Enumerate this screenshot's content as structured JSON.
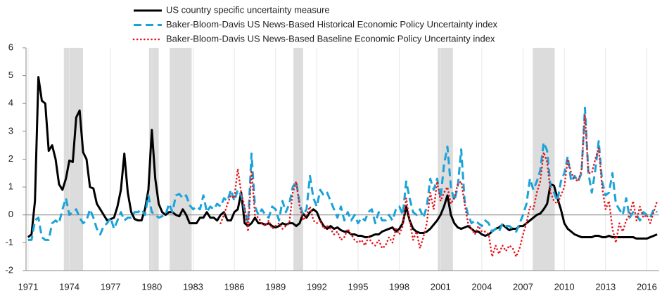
{
  "chart_data": {
    "type": "line",
    "x": [
      1971,
      1971.25,
      1971.5,
      1971.75,
      1972,
      1972.25,
      1972.5,
      1972.75,
      1973,
      1973.25,
      1973.5,
      1973.75,
      1974,
      1974.25,
      1974.5,
      1974.75,
      1975,
      1975.25,
      1975.5,
      1975.75,
      1976,
      1976.25,
      1976.5,
      1976.75,
      1977,
      1977.25,
      1977.5,
      1977.75,
      1978,
      1978.25,
      1978.5,
      1978.75,
      1979,
      1979.25,
      1979.5,
      1979.75,
      1980,
      1980.25,
      1980.5,
      1980.75,
      1981,
      1981.25,
      1981.5,
      1981.75,
      1982,
      1982.25,
      1982.5,
      1982.75,
      1983,
      1983.25,
      1983.5,
      1983.75,
      1984,
      1984.25,
      1984.5,
      1984.75,
      1985,
      1985.25,
      1985.5,
      1985.75,
      1986,
      1986.25,
      1986.5,
      1986.75,
      1987,
      1987.25,
      1987.5,
      1987.75,
      1988,
      1988.25,
      1988.5,
      1988.75,
      1989,
      1989.25,
      1989.5,
      1989.75,
      1990,
      1990.25,
      1990.5,
      1990.75,
      1991,
      1991.25,
      1991.5,
      1991.75,
      1992,
      1992.25,
      1992.5,
      1992.75,
      1993,
      1993.25,
      1993.5,
      1993.75,
      1994,
      1994.25,
      1994.5,
      1994.75,
      1995,
      1995.25,
      1995.5,
      1995.75,
      1996,
      1996.25,
      1996.5,
      1996.75,
      1997,
      1997.25,
      1997.5,
      1997.75,
      1998,
      1998.25,
      1998.5,
      1998.75,
      1999,
      1999.25,
      1999.5,
      1999.75,
      2000,
      2000.25,
      2000.5,
      2000.75,
      2001,
      2001.25,
      2001.5,
      2001.75,
      2002,
      2002.25,
      2002.5,
      2002.75,
      2003,
      2003.25,
      2003.5,
      2003.75,
      2004,
      2004.25,
      2004.5,
      2004.75,
      2005,
      2005.25,
      2005.5,
      2005.75,
      2006,
      2006.25,
      2006.5,
      2006.75,
      2007,
      2007.25,
      2007.5,
      2007.75,
      2008,
      2008.25,
      2008.5,
      2008.75,
      2009,
      2009.25,
      2009.5,
      2009.75,
      2010,
      2010.25,
      2010.5,
      2010.75,
      2011,
      2011.25,
      2011.5,
      2011.75,
      2012,
      2012.25,
      2012.5,
      2012.75,
      2013,
      2013.25,
      2013.5,
      2013.75,
      2014,
      2014.25,
      2014.5,
      2014.75,
      2015,
      2015.25,
      2015.5,
      2015.75,
      2016,
      2016.25,
      2016.5,
      2016.75
    ],
    "series": [
      {
        "name": "US country specific uncertainty measure",
        "color": "#000000",
        "line_style": "solid",
        "values": [
          -0.8,
          -0.7,
          0.5,
          4.95,
          4.1,
          4.0,
          2.3,
          2.5,
          2.0,
          1.1,
          0.9,
          1.3,
          1.95,
          1.9,
          3.5,
          3.75,
          2.25,
          2.0,
          1.0,
          0.95,
          0.4,
          0.2,
          0.0,
          -0.2,
          -0.15,
          -0.1,
          0.3,
          0.9,
          2.2,
          0.8,
          0.1,
          -0.15,
          -0.2,
          -0.2,
          0.2,
          0.9,
          3.05,
          1.3,
          0.4,
          0.1,
          0.0,
          0.1,
          0.1,
          0.0,
          -0.05,
          0.2,
          0.0,
          -0.3,
          -0.3,
          -0.3,
          -0.1,
          -0.1,
          0.1,
          -0.1,
          -0.1,
          -0.2,
          0.0,
          0.1,
          -0.2,
          -0.2,
          0.1,
          0.2,
          0.8,
          -0.3,
          -0.4,
          -0.3,
          -0.1,
          -0.3,
          -0.3,
          -0.35,
          -0.3,
          -0.4,
          -0.45,
          -0.4,
          -0.3,
          -0.35,
          -0.3,
          -0.3,
          -0.4,
          -0.3,
          0.05,
          -0.1,
          0.1,
          0.2,
          0.1,
          -0.2,
          -0.4,
          -0.5,
          -0.4,
          -0.5,
          -0.45,
          -0.55,
          -0.6,
          -0.6,
          -0.7,
          -0.7,
          -0.75,
          -0.75,
          -0.8,
          -0.8,
          -0.75,
          -0.7,
          -0.7,
          -0.6,
          -0.55,
          -0.5,
          -0.45,
          -0.6,
          -0.5,
          -0.3,
          0.3,
          -0.2,
          -0.5,
          -0.6,
          -0.65,
          -0.65,
          -0.6,
          -0.5,
          -0.35,
          -0.2,
          0.0,
          0.3,
          0.7,
          0.0,
          -0.3,
          -0.45,
          -0.5,
          -0.45,
          -0.4,
          -0.5,
          -0.6,
          -0.6,
          -0.7,
          -0.75,
          -0.7,
          -0.6,
          -0.5,
          -0.45,
          -0.35,
          -0.45,
          -0.55,
          -0.5,
          -0.5,
          -0.4,
          -0.4,
          -0.3,
          -0.2,
          -0.1,
          0.0,
          0.05,
          0.2,
          0.4,
          1.1,
          1.05,
          0.6,
          0.2,
          -0.3,
          -0.5,
          -0.6,
          -0.7,
          -0.75,
          -0.8,
          -0.8,
          -0.8,
          -0.8,
          -0.75,
          -0.75,
          -0.8,
          -0.8,
          -0.75,
          -0.8,
          -0.8,
          -0.8,
          -0.8,
          -0.8,
          -0.8,
          -0.8,
          -0.85,
          -0.85,
          -0.85,
          -0.85,
          -0.8,
          -0.75,
          -0.7
        ]
      },
      {
        "name": "Baker-Bloom-Davis US News-Based Historical Economic Policy Uncertainty index",
        "color": "#1aa3d9",
        "line_style": "dashed",
        "values": [
          -0.9,
          -0.9,
          -0.2,
          -0.1,
          -0.8,
          -0.9,
          -0.9,
          -0.3,
          -0.2,
          -0.3,
          0.2,
          0.6,
          0.0,
          0.1,
          0.2,
          -0.1,
          -0.3,
          -0.2,
          0.2,
          -0.1,
          -0.5,
          -0.7,
          -0.4,
          -0.3,
          -0.1,
          -0.5,
          -0.2,
          0.1,
          -0.2,
          -0.1,
          -0.1,
          0.1,
          0.1,
          0.2,
          0.0,
          0.7,
          0.1,
          0.0,
          -0.1,
          -0.05,
          0.0,
          0.4,
          0.1,
          0.7,
          0.75,
          0.6,
          0.7,
          0.35,
          0.2,
          0.3,
          0.2,
          0.7,
          0.1,
          0.3,
          0.2,
          0.4,
          0.3,
          0.6,
          0.5,
          0.9,
          0.5,
          0.9,
          0.7,
          0.2,
          -0.3,
          2.2,
          0.3,
          0.0,
          0.2,
          0.0,
          -0.1,
          0.3,
          0.2,
          -0.2,
          0.5,
          0.1,
          0.4,
          1.0,
          1.2,
          0.4,
          0.0,
          0.2,
          1.4,
          0.6,
          0.3,
          0.9,
          0.7,
          0.8,
          0.5,
          0.2,
          -0.1,
          0.3,
          -0.2,
          0.1,
          -0.2,
          0.0,
          -0.3,
          -0.1,
          -0.2,
          0.1,
          0.2,
          -0.3,
          0.1,
          -0.2,
          -0.2,
          0.0,
          -0.2,
          0.2,
          0.3,
          0.0,
          1.2,
          0.6,
          0.1,
          0.0,
          0.2,
          -0.1,
          0.3,
          1.3,
          0.9,
          1.3,
          0.6,
          1.8,
          2.45,
          1.0,
          0.5,
          1.0,
          2.35,
          0.5,
          0.0,
          -0.3,
          -0.2,
          -0.3,
          -0.4,
          -0.2,
          -0.3,
          -0.6,
          -0.5,
          -0.6,
          -0.3,
          -0.4,
          -0.4,
          -0.5,
          -0.6,
          -0.3,
          0.0,
          0.4,
          1.3,
          0.9,
          1.2,
          1.6,
          2.6,
          2.3,
          1.0,
          0.8,
          0.5,
          1.2,
          1.5,
          2.1,
          1.2,
          1.4,
          1.2,
          1.5,
          3.85,
          1.5,
          0.8,
          1.6,
          2.65,
          1.2,
          0.7,
          0.8,
          1.5,
          0.4,
          0.2,
          0.0,
          0.6,
          -0.1,
          0.1,
          0.0,
          -0.2,
          0.1,
          0.0,
          -0.1,
          0.2,
          0.1
        ]
      },
      {
        "name": "Baker-Bloom-Davis US News-Based Baseline Economic Policy Uncertainty index",
        "color": "#e8141c",
        "line_style": "dotted",
        "values": [
          null,
          null,
          null,
          null,
          null,
          null,
          null,
          null,
          null,
          null,
          null,
          null,
          null,
          null,
          null,
          null,
          null,
          null,
          null,
          null,
          null,
          null,
          null,
          null,
          null,
          null,
          null,
          null,
          null,
          null,
          null,
          null,
          null,
          null,
          null,
          null,
          null,
          null,
          null,
          null,
          null,
          null,
          null,
          null,
          null,
          null,
          null,
          null,
          null,
          null,
          null,
          null,
          null,
          null,
          null,
          null,
          -0.3,
          0.0,
          0.4,
          0.7,
          0.6,
          1.65,
          0.8,
          0.3,
          -0.6,
          1.6,
          0.0,
          -0.1,
          -0.3,
          -0.4,
          -0.2,
          -0.5,
          -0.4,
          -0.3,
          -0.5,
          -0.4,
          -0.3,
          0.8,
          1.2,
          0.3,
          -0.2,
          0.0,
          0.3,
          -0.2,
          -0.3,
          -0.2,
          -0.5,
          -0.4,
          -0.5,
          -0.7,
          -0.6,
          -0.9,
          -0.8,
          -0.5,
          -0.7,
          -0.9,
          -1.0,
          -0.9,
          -1.1,
          -0.8,
          -1.0,
          -1.1,
          -0.9,
          -1.2,
          -1.1,
          -0.8,
          -1.0,
          -0.5,
          -0.7,
          -0.4,
          0.6,
          -0.2,
          -0.9,
          -0.6,
          -1.2,
          -0.8,
          -0.3,
          0.8,
          0.2,
          1.2,
          0.5,
          0.8,
          1.0,
          0.4,
          0.6,
          1.1,
          1.2,
          0.4,
          -0.3,
          -0.5,
          -0.7,
          -0.4,
          -0.6,
          -0.6,
          -0.7,
          -1.5,
          -1.1,
          -1.4,
          -1.1,
          -1.3,
          -1.1,
          -1.2,
          -1.5,
          -1.2,
          -0.7,
          -0.3,
          0.3,
          0.2,
          0.8,
          1.2,
          2.25,
          1.9,
          0.8,
          0.5,
          0.4,
          0.7,
          1.0,
          2.0,
          1.5,
          1.3,
          1.2,
          1.6,
          3.6,
          1.5,
          1.5,
          2.0,
          2.4,
          1.0,
          0.2,
          0.5,
          -0.5,
          -1.0,
          -0.3,
          -0.6,
          -0.2,
          0.0,
          0.5,
          -0.2,
          0.3,
          -0.1,
          0.0,
          -0.3,
          0.1,
          0.5
        ]
      }
    ],
    "recessions": [
      [
        1973.6,
        1975.0
      ],
      [
        1979.8,
        1980.5
      ],
      [
        1981.3,
        1982.9
      ],
      [
        1990.3,
        1991.0
      ],
      [
        2000.8,
        2001.9
      ],
      [
        2007.7,
        2009.3
      ]
    ],
    "recession_color": "#dcdcdc",
    "xlim": [
      1970.85,
      2016.9
    ],
    "xticks": [
      1971,
      1974,
      1977,
      1980,
      1983,
      1986,
      1989,
      1992,
      1995,
      1998,
      2001,
      2004,
      2007,
      2010,
      2013,
      2016
    ],
    "ylim": [
      -2,
      6
    ],
    "yticks": [
      -2,
      -1,
      0,
      1,
      2,
      3,
      4,
      5,
      6
    ],
    "grid": true
  }
}
